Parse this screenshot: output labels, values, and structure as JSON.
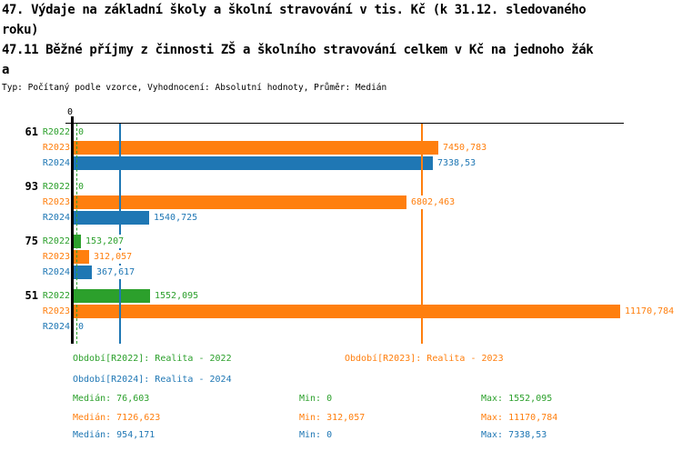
{
  "header": {
    "title_lines": [
      "47. Výdaje na základní školy a školní stravování v tis. Kč (k 31.12. sledovaného",
      "roku)",
      "47.11 Běžné příjmy z činnosti ZŠ a školního stravování celkem v Kč na jednoho žák",
      "a"
    ],
    "meta_line": "Typ: Počítaný podle vzorce, Vyhodnocení: Absolutní hodnoty, Průměr: Medián"
  },
  "chart_data": {
    "type": "bar",
    "orientation": "horizontal",
    "title": "47.11 Běžné příjmy z činnosti ZŠ a školního stravování celkem v Kč na jednoho žáka",
    "axis_zero_label": "0",
    "xlim": [
      0,
      12200
    ],
    "grid": false,
    "series": [
      {
        "name": "R2022",
        "color": "#2CA02C",
        "period": "Realita - 2022",
        "median": 76.603,
        "min": 0,
        "max": 1552.095
      },
      {
        "name": "R2023",
        "color": "#FF7F0E",
        "period": "Realita - 2023",
        "median": 7126.623,
        "min": 312.057,
        "max": 11170.784
      },
      {
        "name": "R2024",
        "color": "#1F77B4",
        "period": "Realita - 2024",
        "median": 954.171,
        "min": 0,
        "max": 7338.53
      }
    ],
    "groups": [
      {
        "label": "61",
        "values": [
          0,
          7450.783,
          7338.53
        ],
        "value_labels": [
          "0",
          "7450,783",
          "7338,53"
        ]
      },
      {
        "label": "93",
        "values": [
          0,
          6802.463,
          1540.725
        ],
        "value_labels": [
          "0",
          "6802,463",
          "1540,725"
        ]
      },
      {
        "label": "75",
        "values": [
          153.207,
          312.057,
          367.617
        ],
        "value_labels": [
          "153,207",
          "312,057",
          "367,617"
        ]
      },
      {
        "label": "51",
        "values": [
          1552.095,
          11170.784,
          0
        ],
        "value_labels": [
          "1552,095",
          "11170,784",
          "0"
        ]
      }
    ],
    "median_lines": [
      {
        "series": "R2022",
        "value": 76.603,
        "color": "#2CA02C",
        "style": "dashed"
      },
      {
        "series": "R2023",
        "value": 7126.623,
        "color": "#FF7F0E",
        "style": "solid"
      },
      {
        "series": "R2024",
        "value": 954.171,
        "color": "#1F77B4",
        "style": "solid"
      }
    ]
  },
  "legend": {
    "periods": [
      {
        "label": "Období[R2022]: Realita - 2022",
        "color": "#2CA02C",
        "row": 0,
        "col": 0
      },
      {
        "label": "Období[R2023]: Realita - 2023",
        "color": "#FF7F0E",
        "row": 0,
        "col": 1
      },
      {
        "label": "Období[R2024]: Realita - 2024",
        "color": "#1F77B4",
        "row": 1,
        "col": 0
      }
    ],
    "stats": [
      {
        "color": "#2CA02C",
        "median": "Medián: 76,603",
        "min": "Min: 0",
        "max": "Max: 1552,095"
      },
      {
        "color": "#FF7F0E",
        "median": "Medián: 7126,623",
        "min": "Min: 312,057",
        "max": "Max: 11170,784"
      },
      {
        "color": "#1F77B4",
        "median": "Medián: 954,171",
        "min": "Min: 0",
        "max": "Max: 7338,53"
      }
    ]
  }
}
